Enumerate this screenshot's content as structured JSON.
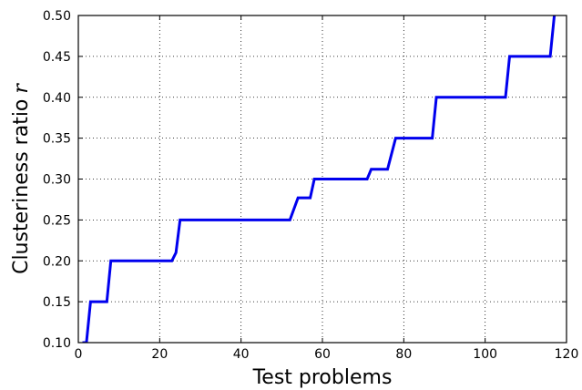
{
  "chart_data": {
    "type": "line",
    "xlabel": "Test problems",
    "ylabel": "Clusteriness ratio",
    "ylabel_symbol": "r",
    "xlim": [
      0,
      120
    ],
    "ylim": [
      0.1,
      0.5
    ],
    "x_ticks": [
      0,
      20,
      40,
      60,
      80,
      100,
      120
    ],
    "x_tick_labels": [
      "0",
      "20",
      "40",
      "60",
      "80",
      "100",
      "120"
    ],
    "y_ticks": [
      0.1,
      0.15,
      0.2,
      0.25,
      0.3,
      0.35,
      0.4,
      0.45,
      0.5
    ],
    "y_tick_labels": [
      "0.10",
      "0.15",
      "0.20",
      "0.25",
      "0.30",
      "0.35",
      "0.40",
      "0.45",
      "0.50"
    ],
    "grid": true,
    "grid_style": "dotted",
    "series": [
      {
        "color": "#0000ee",
        "x": [
          1,
          2,
          3,
          7,
          8,
          23,
          24,
          25,
          52,
          54,
          57,
          58,
          71,
          72,
          76,
          78,
          87,
          88,
          105,
          106,
          116,
          117
        ],
        "y": [
          0.1,
          0.1,
          0.15,
          0.15,
          0.2,
          0.2,
          0.21,
          0.25,
          0.25,
          0.277,
          0.277,
          0.3,
          0.3,
          0.312,
          0.312,
          0.35,
          0.35,
          0.4,
          0.4,
          0.45,
          0.45,
          0.5
        ]
      }
    ]
  }
}
